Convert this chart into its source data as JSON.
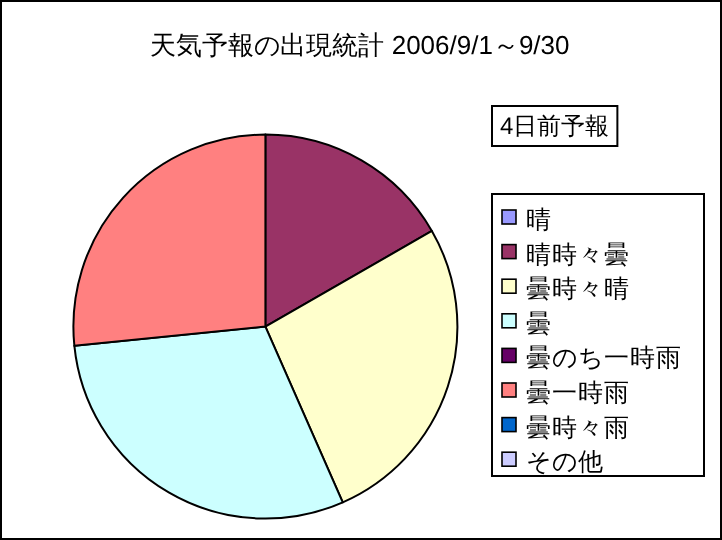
{
  "chart_data": {
    "type": "pie",
    "title": "天気予報の出現統計  2006/9/1～9/30",
    "categories": [
      "晴",
      "晴時々曇",
      "曇時々晴",
      "曇",
      "曇のち一時雨",
      "曇一時雨",
      "曇時々雨",
      "その他"
    ],
    "values": [
      0,
      16.7,
      26.7,
      30,
      0,
      26.6,
      0,
      0
    ],
    "colors": [
      "#9999ff",
      "#993366",
      "#ffffcc",
      "#ccffff",
      "#660066",
      "#ff8080",
      "#0066cc",
      "#ccccff"
    ],
    "annotations": [
      "4日前予報"
    ],
    "legend": "right"
  }
}
